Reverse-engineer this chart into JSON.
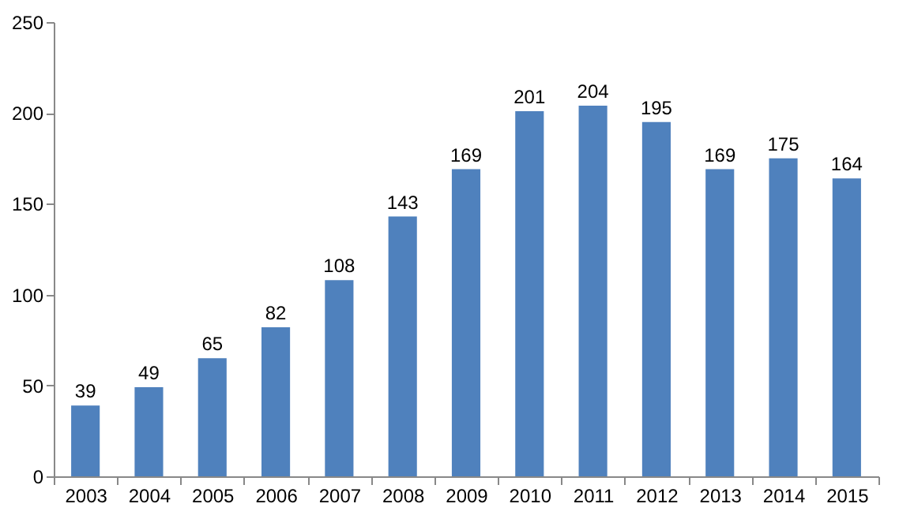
{
  "chart_data": {
    "type": "bar",
    "categories": [
      "2003",
      "2004",
      "2005",
      "2006",
      "2007",
      "2008",
      "2009",
      "2010",
      "2011",
      "2012",
      "2013",
      "2014",
      "2015"
    ],
    "values": [
      39,
      49,
      65,
      82,
      108,
      143,
      169,
      201,
      204,
      195,
      169,
      175,
      164
    ],
    "color": "#4f81bd",
    "ylim": [
      0,
      250
    ],
    "yticks": [
      0,
      50,
      100,
      150,
      200,
      250
    ],
    "data_labels": true,
    "grid": false
  }
}
